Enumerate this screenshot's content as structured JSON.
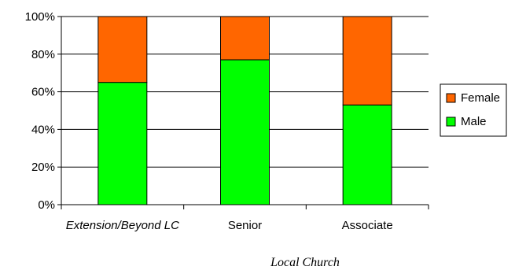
{
  "chart_data": {
    "type": "bar",
    "stacked": true,
    "categories": [
      "Extension/Beyond LC",
      "Senior",
      "Associate"
    ],
    "category_styles": [
      "italic",
      "normal",
      "normal"
    ],
    "series": [
      {
        "name": "Male",
        "values": [
          65,
          77,
          53
        ],
        "color": "#00ff00"
      },
      {
        "name": "Female",
        "values": [
          35,
          23,
          47
        ],
        "color": "#ff6600"
      }
    ],
    "ylim": [
      0,
      100
    ],
    "yticks": [
      "0%",
      "20%",
      "40%",
      "60%",
      "80%",
      "100%"
    ],
    "grid": true,
    "legend": {
      "placement": "right",
      "entries": [
        "Female",
        "Male"
      ]
    },
    "group_label": "Local Church"
  }
}
